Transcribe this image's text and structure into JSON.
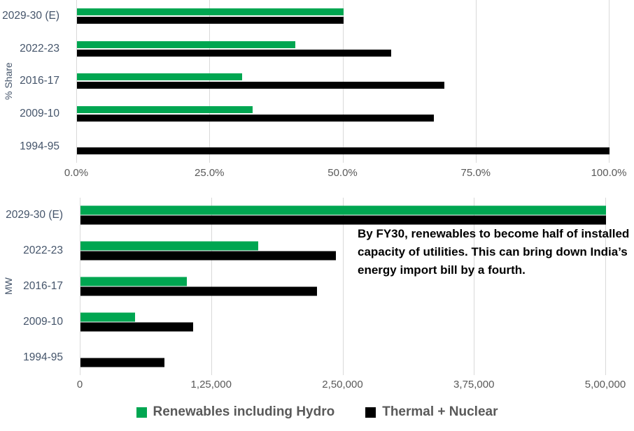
{
  "colors": {
    "renewables": "#00A651",
    "thermal": "#000000",
    "category_text": "#44546A",
    "axis_text": "#595959",
    "legend_text": "#595959",
    "gridline": "#D9D9D9",
    "annotation_text": "#000000",
    "background": "#FFFFFF"
  },
  "chart_data": [
    {
      "type": "bar",
      "orientation": "horizontal",
      "title": "",
      "xlabel": "",
      "ylabel": "% Share",
      "categories": [
        "2029-30 (E)",
        "2022-23",
        "2016-17",
        "2009-10",
        "1994-95"
      ],
      "series": [
        {
          "name": "Renewables including Hydro",
          "values": [
            50.0,
            41.0,
            31.0,
            33.0,
            0
          ]
        },
        {
          "name": "Thermal + Nuclear",
          "values": [
            50.0,
            59.0,
            69.0,
            67.0,
            100.0
          ]
        }
      ],
      "xlim": [
        0,
        100
      ],
      "x_ticks": [
        "0.0%",
        "25.0%",
        "50.0%",
        "75.0%",
        "100.0%"
      ],
      "grid": true,
      "legend_position": "shared-bottom"
    },
    {
      "type": "bar",
      "orientation": "horizontal",
      "title": "",
      "xlabel": "",
      "ylabel": "MW",
      "categories": [
        "2029-30 (E)",
        "2022-23",
        "2016-17",
        "2009-10",
        "1994-95"
      ],
      "series": [
        {
          "name": "Renewables including Hydro",
          "values": [
            500000,
            169000,
            101000,
            52000,
            0
          ]
        },
        {
          "name": "Thermal + Nuclear",
          "values": [
            500000,
            243000,
            225000,
            107000,
            80000
          ]
        }
      ],
      "xlim": [
        0,
        500000
      ],
      "x_ticks": [
        "0",
        "1,25,000",
        "2,50,000",
        "3,75,000",
        "5,00,000"
      ],
      "grid": true,
      "legend_position": "shared-bottom",
      "annotation": "By FY30, renewables to become half of installed capacity of utilities. This can bring down India’s energy import bill by a fourth."
    }
  ],
  "legend": {
    "items": [
      {
        "label": "Renewables including Hydro",
        "color": "#00A651"
      },
      {
        "label": "Thermal + Nuclear",
        "color": "#000000"
      }
    ]
  }
}
